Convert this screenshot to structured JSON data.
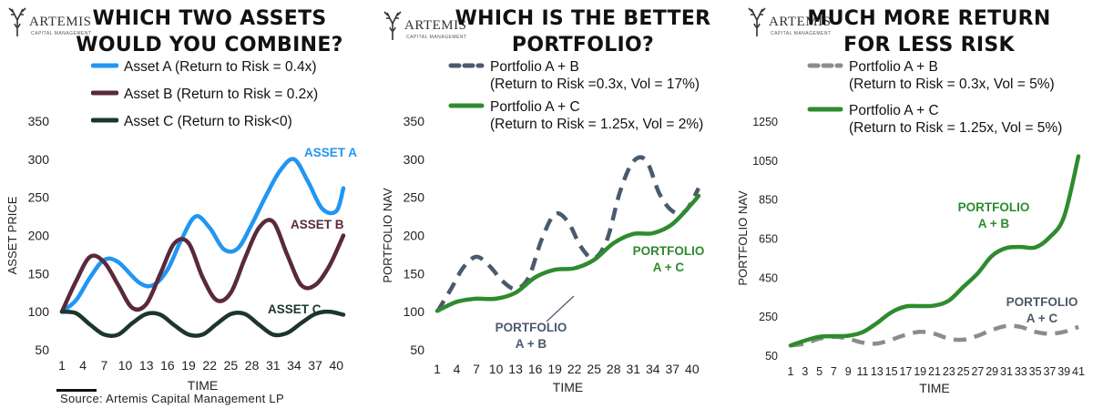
{
  "panels": [
    {
      "title_line1": "WHICH TWO ASSETS",
      "title_line2": "WOULD YOU COMBINE?",
      "logo_text": "ARTEMIS",
      "logo_sub": "CAPITAL MANAGEMENT",
      "legend": [
        {
          "label": "Asset A (Return to Risk = 0.4x)"
        },
        {
          "label": "Asset B (Return to Risk = 0.2x)"
        },
        {
          "label": "Asset C (Return to Risk<0)"
        }
      ]
    },
    {
      "title_line1": "WHICH IS THE BETTER",
      "title_line2": "PORTFOLIO?",
      "logo_text": "ARTEMIS",
      "logo_sub": "CAPITAL MANAGEMENT",
      "legend": [
        {
          "label": "Portfolio A + B",
          "sub": "(Return to Risk =0.3x, Vol = 17%)"
        },
        {
          "label": "Portfolio A + C",
          "sub": "(Return to Risk = 1.25x, Vol = 2%)"
        }
      ]
    },
    {
      "title_line1": "MUCH MORE RETURN",
      "title_line2": "FOR LESS RISK",
      "logo_text": "ARTEMIS",
      "logo_sub": "CAPITAL MANAGEMENT",
      "legend": [
        {
          "label": "Portfolio A + B",
          "sub": "(Return to Risk = 0.3x, Vol = 5%)"
        },
        {
          "label": "Portfolio A + C",
          "sub": "(Return to Risk = 1.25x, Vol = 5%)"
        }
      ]
    }
  ],
  "source": "Source: Artemis Capital Management LP",
  "chart_data": [
    {
      "type": "line",
      "xlabel": "TIME",
      "ylabel": "ASSET PRICE",
      "xlim": [
        1,
        41
      ],
      "ylim": [
        50,
        350
      ],
      "yticks": [
        50,
        100,
        150,
        200,
        250,
        300,
        350
      ],
      "xticks": [
        1,
        4,
        7,
        10,
        13,
        16,
        19,
        22,
        25,
        28,
        31,
        34,
        37,
        40
      ],
      "series": [
        {
          "name": "Asset A (Return to Risk = 0.4x)",
          "color": "#2196F3",
          "dash": false,
          "annotation": "ASSET A",
          "x": [
            1,
            3,
            5,
            7,
            9,
            12,
            14,
            16,
            18,
            20,
            22,
            24,
            26,
            28,
            30,
            32,
            34,
            36,
            38,
            40,
            41
          ],
          "y": [
            100,
            115,
            145,
            168,
            165,
            138,
            135,
            155,
            195,
            225,
            210,
            182,
            183,
            215,
            252,
            285,
            300,
            270,
            235,
            232,
            262
          ]
        },
        {
          "name": "Asset B (Return to Risk = 0.2x)",
          "color": "#5a2a3a",
          "dash": false,
          "annotation": "ASSET B",
          "x": [
            1,
            3,
            5,
            7,
            9,
            11,
            13,
            15,
            17,
            19,
            21,
            23,
            25,
            27,
            29,
            31,
            33,
            35,
            37,
            39,
            41
          ],
          "y": [
            100,
            140,
            172,
            165,
            135,
            105,
            110,
            150,
            190,
            190,
            145,
            115,
            125,
            170,
            210,
            218,
            175,
            135,
            135,
            160,
            200
          ]
        },
        {
          "name": "Asset C (Return to Risk<0)",
          "color": "#1c3530",
          "dash": false,
          "annotation": "ASSET C",
          "x": [
            1,
            3,
            5,
            7,
            9,
            11,
            13,
            15,
            17,
            19,
            21,
            23,
            25,
            27,
            29,
            31,
            33,
            35,
            37,
            39,
            41
          ],
          "y": [
            100,
            98,
            83,
            70,
            70,
            85,
            97,
            96,
            82,
            70,
            70,
            84,
            97,
            97,
            83,
            70,
            72,
            85,
            97,
            100,
            96
          ]
        }
      ]
    },
    {
      "type": "line",
      "xlabel": "TIME",
      "ylabel": "PORTFOLIO NAV",
      "xlim": [
        1,
        41
      ],
      "ylim": [
        50,
        350
      ],
      "yticks": [
        50,
        100,
        150,
        200,
        250,
        300,
        350
      ],
      "xticks": [
        1,
        4,
        7,
        10,
        13,
        16,
        19,
        22,
        25,
        28,
        31,
        34,
        37,
        40
      ],
      "series": [
        {
          "name": "Portfolio A + B",
          "color": "#4a5a6e",
          "dash": true,
          "annotation_lines": [
            "PORTFOLIO",
            "A + B"
          ],
          "x": [
            1,
            3,
            5,
            7,
            9,
            11,
            13,
            15,
            17,
            19,
            21,
            23,
            25,
            27,
            29,
            31,
            33,
            35,
            37,
            39,
            41
          ],
          "y": [
            100,
            128,
            158,
            172,
            160,
            140,
            130,
            145,
            195,
            228,
            218,
            185,
            170,
            195,
            258,
            297,
            298,
            255,
            232,
            232,
            262
          ]
        },
        {
          "name": "Portfolio A + C",
          "color": "#2e8b2e",
          "dash": false,
          "annotation_lines": [
            "PORTFOLIO",
            "A + C"
          ],
          "x": [
            1,
            4,
            7,
            10,
            13,
            16,
            19,
            22,
            25,
            28,
            31,
            34,
            37,
            40,
            41
          ],
          "y": [
            101,
            113,
            117,
            117,
            125,
            145,
            155,
            157,
            168,
            190,
            202,
            203,
            215,
            242,
            252
          ]
        }
      ]
    },
    {
      "type": "line",
      "xlabel": "TIME",
      "ylabel": "PORTFOLIO NAV",
      "xlim": [
        1,
        41
      ],
      "ylim": [
        50,
        1250
      ],
      "yticks": [
        50,
        250,
        450,
        650,
        850,
        1050,
        1250
      ],
      "xticks": [
        1,
        3,
        5,
        7,
        9,
        11,
        13,
        15,
        17,
        19,
        21,
        23,
        25,
        27,
        29,
        31,
        33,
        35,
        37,
        39,
        41
      ],
      "series": [
        {
          "name": "Portfolio A + B",
          "color": "#8c8c8c",
          "dash": true,
          "annotation_lines": [
            "PORTFOLIO",
            "A + B"
          ],
          "x": [
            1,
            3,
            5,
            7,
            9,
            11,
            13,
            15,
            17,
            19,
            21,
            23,
            25,
            27,
            29,
            31,
            33,
            35,
            37,
            39,
            41
          ],
          "y": [
            100,
            110,
            135,
            145,
            135,
            115,
            110,
            130,
            155,
            170,
            160,
            135,
            130,
            150,
            180,
            200,
            195,
            170,
            160,
            170,
            195
          ]
        },
        {
          "name": "Portfolio A + C",
          "color": "#2e8b2e",
          "dash": false,
          "annotation_lines": [
            "PORTFOLIO",
            "A + C"
          ],
          "x": [
            1,
            3,
            5,
            7,
            9,
            11,
            13,
            15,
            17,
            19,
            21,
            23,
            25,
            27,
            29,
            31,
            33,
            35,
            37,
            39,
            41
          ],
          "y": [
            100,
            125,
            145,
            148,
            150,
            168,
            215,
            270,
            300,
            302,
            305,
            330,
            400,
            470,
            560,
            600,
            605,
            603,
            655,
            760,
            1070
          ]
        }
      ]
    }
  ]
}
